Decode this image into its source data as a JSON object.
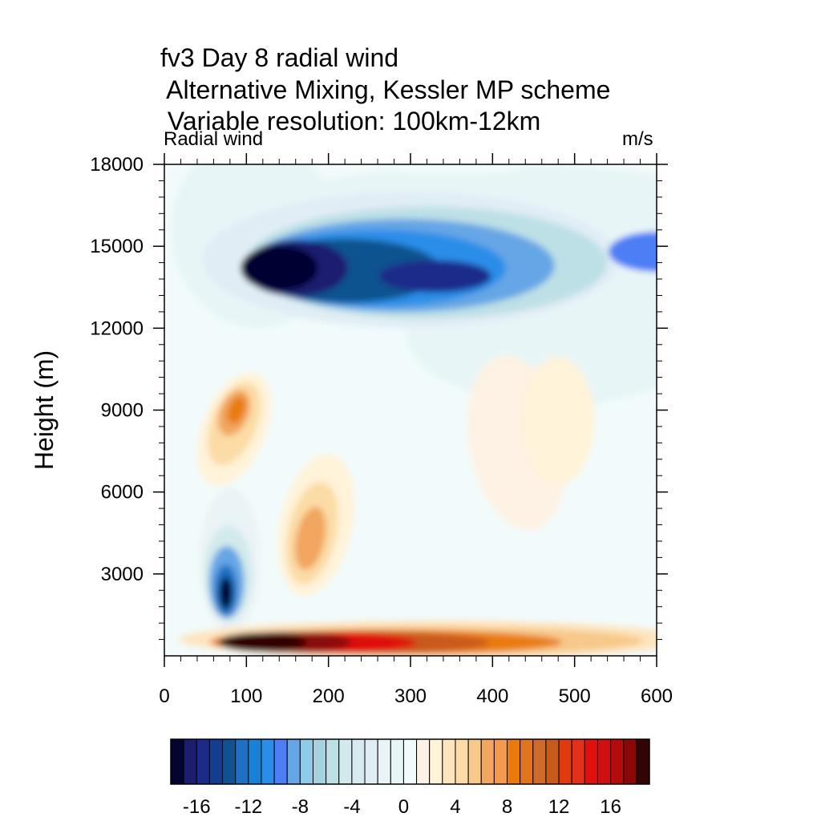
{
  "title": {
    "line1": "fv3 Day 8 radial wind",
    "line2": " Alternative Mixing, Kessler MP scheme",
    "line3": " Variable resolution: 100km-12km"
  },
  "left_string": "Radial wind",
  "right_string": "m/s",
  "chart_data": {
    "type": "heatmap",
    "subtype": "filled contour",
    "variable": "radial wind",
    "units": "m/s",
    "ylabel": "Height (m)",
    "xlabel": "",
    "xlim": [
      0,
      600
    ],
    "ylim": [
      0,
      18000
    ],
    "x_ticks": [
      0,
      100,
      200,
      300,
      400,
      500,
      600
    ],
    "y_ticks": [
      3000,
      6000,
      9000,
      12000,
      15000,
      18000
    ],
    "colorbar": {
      "min": -18,
      "max": 18,
      "step": 1,
      "tick_values": [
        -16,
        -12,
        -8,
        -4,
        0,
        4,
        8,
        12,
        16
      ],
      "colors": [
        "#040433",
        "#1c1c70",
        "#1c2a8a",
        "#153d8f",
        "#0f528f",
        "#1f6fc2",
        "#1a82d4",
        "#2a8ee8",
        "#4d7ef5",
        "#66a6e6",
        "#8ecbe8",
        "#a6d2e0",
        "#bde0e6",
        "#d2eaeb",
        "#d6ebef",
        "#e1edf5",
        "#eaf3f5",
        "#e8f5f7",
        "#f2fbfb",
        "#fdf2e3",
        "#fff3d9",
        "#fde5c0",
        "#fbdca6",
        "#f7c98a",
        "#f2a65f",
        "#f29b4c",
        "#e97b0c",
        "#e0751d",
        "#cf6b2a",
        "#c85a1c",
        "#e03a10",
        "#e3301a",
        "#e01010",
        "#d01010",
        "#b40c0c",
        "#8a0808",
        "#320404"
      ]
    },
    "features": [
      {
        "name": "upper-level inflow core",
        "x": 140,
        "y": 14200,
        "peak": -18
      },
      {
        "name": "upper inflow extension",
        "x": 380,
        "y": 14000,
        "peak": -16
      },
      {
        "name": "mid-level inflow core",
        "x": 75,
        "y": 2300,
        "peak": -18
      },
      {
        "name": "mid-level outflow",
        "x": 85,
        "y": 8800,
        "peak": 8
      },
      {
        "name": "lower-mid outflow",
        "x": 180,
        "y": 4500,
        "peak": 6
      },
      {
        "name": "boundary-layer outflow jet",
        "x": 110,
        "y": 600,
        "peak": 18
      }
    ]
  }
}
